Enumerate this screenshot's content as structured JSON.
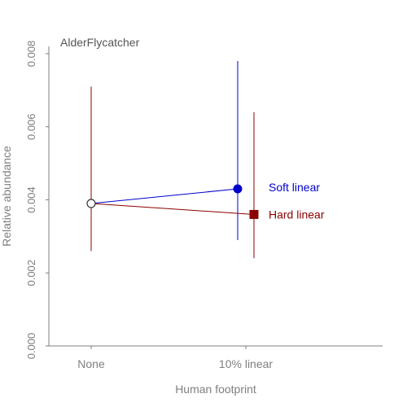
{
  "chart_data": {
    "type": "scatter",
    "title": "AlderFlycatcher",
    "xlabel": "Human footprint",
    "ylabel": "Relative abundance",
    "categories": [
      "None",
      "10% linear"
    ],
    "ylim": [
      0,
      0.0082
    ],
    "yticks": [
      0,
      0.002,
      0.004,
      0.006,
      0.008
    ],
    "ytick_labels": [
      "0.000",
      "0.002",
      "0.004",
      "0.006",
      "0.008"
    ],
    "baseline": {
      "category": "None",
      "value": 0.0039,
      "lower": 0.0026,
      "upper": 0.0071,
      "color": "#8B0000"
    },
    "series": [
      {
        "name": "Soft linear",
        "color": "#0000CD",
        "marker": "circle",
        "points": [
          {
            "category": "None",
            "value": 0.0039
          },
          {
            "category": "10% linear",
            "value": 0.0043,
            "lower": 0.0029,
            "upper": 0.0078
          }
        ]
      },
      {
        "name": "Hard linear",
        "color": "#8B0000",
        "marker": "square",
        "points": [
          {
            "category": "None",
            "value": 0.0039
          },
          {
            "category": "10% linear",
            "value": 0.0036,
            "lower": 0.0024,
            "upper": 0.0064
          }
        ]
      }
    ],
    "grid": false,
    "legend": "right"
  }
}
